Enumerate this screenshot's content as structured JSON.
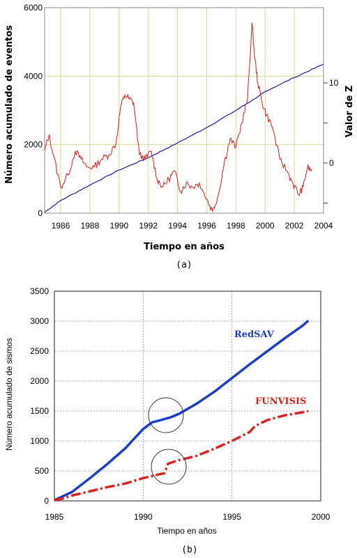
{
  "chart_data": [
    {
      "type": "line",
      "panel_label": "(a)",
      "xlabel": "Tiempo en años",
      "ylabel": "Número acumulado de eventos",
      "y2label": "Valor de Z",
      "xlim": [
        1984.9,
        2004
      ],
      "ylim": [
        0,
        6000
      ],
      "x_ticks": [
        "1986",
        "1988",
        "1990",
        "1992",
        "1994",
        "1996",
        "1998",
        "2000",
        "2002",
        "2004"
      ],
      "y_ticks": [
        "0",
        "2000",
        "4000",
        "6000"
      ],
      "y2_ticks": [
        "0",
        "10"
      ],
      "grid": true,
      "colors": {
        "cumulative": "#1a1a9a",
        "z": "#e01818",
        "grid": "#d8d890"
      },
      "series": [
        {
          "axis": "left",
          "x": [
            1984.9,
            1986,
            1988,
            1990,
            1992,
            1994,
            1996,
            1998,
            1999.5,
            2000,
            2002,
            2004
          ],
          "values": [
            30,
            370,
            820,
            1260,
            1620,
            2050,
            2500,
            3000,
            3400,
            3550,
            3960,
            4350
          ]
        },
        {
          "axis": "right",
          "x": [
            1984.9,
            1985.2,
            1985.5,
            1986.0,
            1986.5,
            1987.0,
            1987.4,
            1987.8,
            1988.3,
            1988.8,
            1989.3,
            1989.8,
            1990.1,
            1990.4,
            1990.7,
            1991.0,
            1991.4,
            1991.8,
            1992.2,
            1992.6,
            1993.0,
            1993.4,
            1993.8,
            1994.2,
            1994.6,
            1995.0,
            1995.5,
            1996.0,
            1996.4,
            1996.8,
            1997.2,
            1997.6,
            1998.0,
            1998.4,
            1998.8,
            1999.1,
            1999.3,
            1999.5,
            1999.8,
            2000.1,
            2000.5,
            2001.0,
            2001.5,
            2001.9,
            2002.3,
            2002.6,
            2002.9,
            2003.2
          ],
          "values": [
            1.5,
            3.5,
            1.0,
            -3.0,
            -1.5,
            1.5,
            0.5,
            -0.5,
            -0.5,
            0.5,
            1.0,
            2.5,
            7.0,
            8.5,
            8.0,
            7.5,
            1.0,
            0.5,
            1.5,
            -2.0,
            -3.0,
            -2.0,
            -1.0,
            -3.5,
            -2.5,
            -3.0,
            -2.5,
            -4.5,
            -6.0,
            -4.0,
            0.0,
            3.0,
            2.0,
            5.0,
            8.0,
            17.5,
            13.0,
            10.0,
            7.5,
            6.0,
            4.5,
            0.5,
            -1.0,
            -2.5,
            -4.0,
            -3.0,
            -0.5,
            -1.0
          ]
        }
      ]
    },
    {
      "type": "line",
      "panel_label": "(b)",
      "xlabel": "Tiempo en años",
      "ylabel": "Número acumulado de sismos",
      "xlim": [
        1985,
        2000
      ],
      "ylim": [
        0,
        3500
      ],
      "x_ticks": [
        "1985",
        "1990",
        "1995",
        "2000"
      ],
      "y_ticks": [
        "0",
        "500",
        "1000",
        "1500",
        "2000",
        "2500",
        "3000",
        "3500"
      ],
      "grid": true,
      "colors": {
        "RedSAV": "#1c3ccc",
        "FUNVISIS": "#e02020",
        "grid": "#8a8ab0"
      },
      "series": [
        {
          "name": "RedSAV",
          "x": [
            1985.0,
            1985.5,
            1986,
            1987,
            1988,
            1989,
            1990,
            1990.5,
            1991,
            1991.5,
            1992,
            1993,
            1994,
            1995,
            1996,
            1997,
            1998,
            1999,
            1999.3
          ],
          "values": [
            10,
            80,
            150,
            380,
            620,
            880,
            1200,
            1310,
            1350,
            1390,
            1450,
            1620,
            1820,
            2050,
            2280,
            2500,
            2720,
            2930,
            3010
          ]
        },
        {
          "name": "FUNVISIS",
          "x": [
            1985.0,
            1985.5,
            1986,
            1987,
            1988,
            1989,
            1990,
            1991,
            1991.2,
            1991.4,
            1992,
            1993,
            1994,
            1995,
            1996,
            1996.3,
            1997,
            1998,
            1999,
            1999.3
          ],
          "values": [
            10,
            40,
            90,
            160,
            230,
            290,
            380,
            450,
            460,
            620,
            680,
            750,
            870,
            1000,
            1150,
            1250,
            1350,
            1430,
            1480,
            1500
          ]
        }
      ],
      "annotations": [
        "circle around 1991.3 on RedSAV",
        "circle around 1991.3 on FUNVISIS"
      ]
    }
  ]
}
